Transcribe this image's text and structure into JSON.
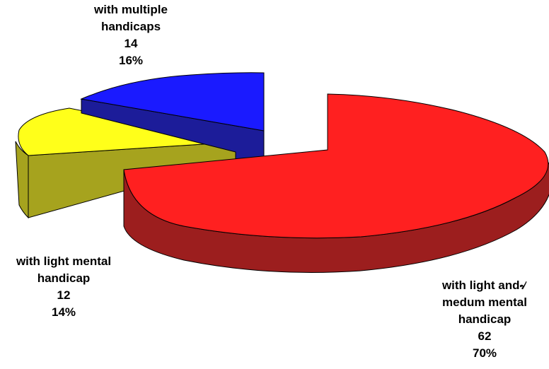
{
  "chart_data": {
    "type": "pie",
    "title": "",
    "slices": [
      {
        "label_lines": [
          "with light and৵",
          "medum mental",
          "handicap"
        ],
        "value": 62,
        "percent": "70%",
        "color": "#ff2020",
        "side_color": "#9c1e1e"
      },
      {
        "label_lines": [
          "with light mental",
          "handicap"
        ],
        "value": 12,
        "percent": "14%",
        "color": "#ffff1a",
        "side_color": "#a6a31e"
      },
      {
        "label_lines": [
          "with multiple",
          "handicaps"
        ],
        "value": 14,
        "percent": "16%",
        "color": "#1a1aff",
        "side_color": "#1c1c99"
      }
    ]
  }
}
